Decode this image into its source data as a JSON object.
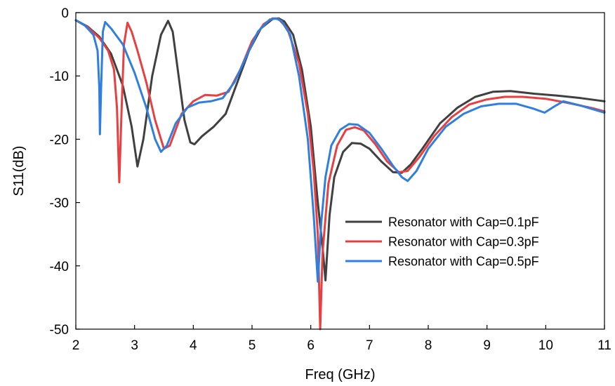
{
  "chart_data": {
    "type": "line",
    "xlabel": "Freq (GHz)",
    "ylabel": "S11(dB)",
    "xlim": [
      2,
      11
    ],
    "ylim": [
      -50,
      0
    ],
    "xticks": [
      2,
      3,
      4,
      5,
      6,
      7,
      8,
      9,
      10,
      11
    ],
    "yticks": [
      0,
      -10,
      -20,
      -30,
      -40,
      -50
    ],
    "grid": false,
    "legend_position": "right",
    "series": [
      {
        "name": "Resonator with Cap=0.1pF",
        "color": "#404040",
        "points": [
          [
            2.0,
            -1.2
          ],
          [
            2.2,
            -2.2
          ],
          [
            2.4,
            -3.8
          ],
          [
            2.6,
            -6.5
          ],
          [
            2.8,
            -11.5
          ],
          [
            2.95,
            -18
          ],
          [
            3.05,
            -24.3
          ],
          [
            3.15,
            -20
          ],
          [
            3.3,
            -10
          ],
          [
            3.45,
            -3.5
          ],
          [
            3.57,
            -1.3
          ],
          [
            3.65,
            -3
          ],
          [
            3.75,
            -10
          ],
          [
            3.85,
            -17
          ],
          [
            3.95,
            -20.5
          ],
          [
            4.02,
            -20.8
          ],
          [
            4.15,
            -19.5
          ],
          [
            4.35,
            -18
          ],
          [
            4.55,
            -16
          ],
          [
            4.75,
            -11
          ],
          [
            4.95,
            -6
          ],
          [
            5.15,
            -2.5
          ],
          [
            5.35,
            -1
          ],
          [
            5.45,
            -0.9
          ],
          [
            5.55,
            -1.4
          ],
          [
            5.7,
            -3.5
          ],
          [
            5.85,
            -9
          ],
          [
            6.0,
            -18
          ],
          [
            6.12,
            -30
          ],
          [
            6.2,
            -37
          ],
          [
            6.25,
            -42.3
          ],
          [
            6.32,
            -32
          ],
          [
            6.4,
            -26
          ],
          [
            6.55,
            -22
          ],
          [
            6.7,
            -20.6
          ],
          [
            6.85,
            -20.7
          ],
          [
            7.0,
            -21.5
          ],
          [
            7.2,
            -23.5
          ],
          [
            7.4,
            -25.2
          ],
          [
            7.55,
            -25.3
          ],
          [
            7.7,
            -24
          ],
          [
            7.9,
            -21.5
          ],
          [
            8.2,
            -17.5
          ],
          [
            8.5,
            -15
          ],
          [
            8.8,
            -13.3
          ],
          [
            9.1,
            -12.5
          ],
          [
            9.4,
            -12.4
          ],
          [
            9.8,
            -12.8
          ],
          [
            10.2,
            -13.1
          ],
          [
            10.6,
            -13.5
          ],
          [
            11.0,
            -14.0
          ]
        ]
      },
      {
        "name": "Resonator with Cap=0.3pF",
        "color": "#e84040",
        "points": [
          [
            2.0,
            -1.2
          ],
          [
            2.2,
            -2.3
          ],
          [
            2.4,
            -4
          ],
          [
            2.55,
            -6
          ],
          [
            2.65,
            -9
          ],
          [
            2.7,
            -15
          ],
          [
            2.74,
            -26.8
          ],
          [
            2.78,
            -15
          ],
          [
            2.82,
            -5
          ],
          [
            2.88,
            -1.6
          ],
          [
            2.95,
            -3
          ],
          [
            3.05,
            -6
          ],
          [
            3.2,
            -11
          ],
          [
            3.35,
            -17
          ],
          [
            3.5,
            -21.5
          ],
          [
            3.6,
            -21
          ],
          [
            3.8,
            -16
          ],
          [
            4.0,
            -14
          ],
          [
            4.2,
            -13
          ],
          [
            4.4,
            -13.1
          ],
          [
            4.6,
            -12.5
          ],
          [
            4.8,
            -9
          ],
          [
            5.0,
            -4.5
          ],
          [
            5.2,
            -1.8
          ],
          [
            5.35,
            -0.9
          ],
          [
            5.45,
            -1.0
          ],
          [
            5.6,
            -2.5
          ],
          [
            5.8,
            -8
          ],
          [
            5.95,
            -16
          ],
          [
            6.05,
            -25
          ],
          [
            6.12,
            -35
          ],
          [
            6.16,
            -50
          ],
          [
            6.2,
            -38
          ],
          [
            6.3,
            -27
          ],
          [
            6.45,
            -21
          ],
          [
            6.6,
            -18.5
          ],
          [
            6.75,
            -18.1
          ],
          [
            6.9,
            -18.6
          ],
          [
            7.1,
            -20.8
          ],
          [
            7.3,
            -23.5
          ],
          [
            7.5,
            -25.2
          ],
          [
            7.65,
            -25
          ],
          [
            7.85,
            -22.8
          ],
          [
            8.1,
            -19.5
          ],
          [
            8.4,
            -16.5
          ],
          [
            8.7,
            -14.5
          ],
          [
            9.0,
            -13.7
          ],
          [
            9.3,
            -13.3
          ],
          [
            9.6,
            -13.3
          ],
          [
            10.0,
            -13.6
          ],
          [
            10.4,
            -14.3
          ],
          [
            10.8,
            -15.1
          ],
          [
            11.0,
            -15.6
          ]
        ]
      },
      {
        "name": "Resonator with Cap=0.5pF",
        "color": "#2f7fe0",
        "points": [
          [
            2.0,
            -1.2
          ],
          [
            2.15,
            -2
          ],
          [
            2.3,
            -3.5
          ],
          [
            2.37,
            -6
          ],
          [
            2.4,
            -12
          ],
          [
            2.41,
            -19.2
          ],
          [
            2.43,
            -12
          ],
          [
            2.46,
            -3
          ],
          [
            2.5,
            -1.5
          ],
          [
            2.6,
            -2.5
          ],
          [
            2.8,
            -5
          ],
          [
            3.0,
            -9.5
          ],
          [
            3.2,
            -15
          ],
          [
            3.35,
            -20
          ],
          [
            3.45,
            -22
          ],
          [
            3.55,
            -21
          ],
          [
            3.7,
            -17.5
          ],
          [
            3.9,
            -15
          ],
          [
            4.1,
            -14.2
          ],
          [
            4.3,
            -14
          ],
          [
            4.5,
            -13.5
          ],
          [
            4.7,
            -11
          ],
          [
            4.9,
            -7
          ],
          [
            5.1,
            -3
          ],
          [
            5.3,
            -1.1
          ],
          [
            5.4,
            -0.9
          ],
          [
            5.5,
            -1.3
          ],
          [
            5.65,
            -3.5
          ],
          [
            5.8,
            -10
          ],
          [
            5.95,
            -20
          ],
          [
            6.05,
            -32
          ],
          [
            6.12,
            -42.5
          ],
          [
            6.18,
            -33
          ],
          [
            6.25,
            -26
          ],
          [
            6.35,
            -21
          ],
          [
            6.5,
            -18.5
          ],
          [
            6.65,
            -17.6
          ],
          [
            6.8,
            -17.7
          ],
          [
            7.0,
            -19
          ],
          [
            7.2,
            -21.5
          ],
          [
            7.4,
            -24.2
          ],
          [
            7.55,
            -26
          ],
          [
            7.65,
            -26.6
          ],
          [
            7.8,
            -25
          ],
          [
            8.0,
            -21.5
          ],
          [
            8.3,
            -18
          ],
          [
            8.6,
            -16
          ],
          [
            8.9,
            -14.8
          ],
          [
            9.2,
            -14.4
          ],
          [
            9.5,
            -14.4
          ],
          [
            9.8,
            -15.2
          ],
          [
            9.98,
            -15.8
          ],
          [
            10.15,
            -14.8
          ],
          [
            10.3,
            -14
          ],
          [
            10.6,
            -14.7
          ],
          [
            11.0,
            -15.8
          ]
        ]
      }
    ]
  }
}
